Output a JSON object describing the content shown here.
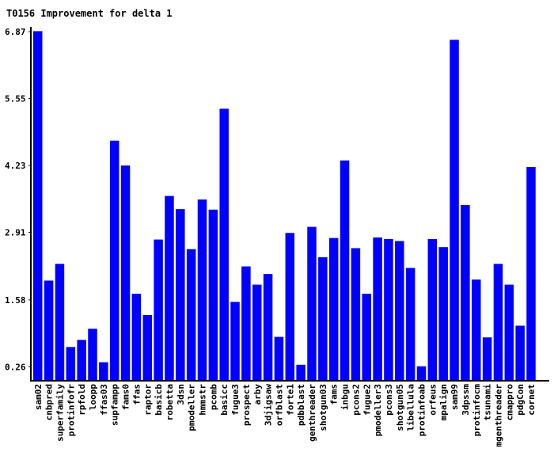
{
  "chart_data": {
    "type": "bar",
    "title": "T0156 Improvement for delta 1",
    "xlabel": "",
    "ylabel": "",
    "ylim": [
      0,
      6.98
    ],
    "yticks": [
      0.26,
      1.58,
      2.91,
      4.23,
      5.55,
      6.87
    ],
    "ytick_labels": [
      "0.26",
      "1.58",
      "2.91",
      "4.23",
      "5.55",
      "6.87"
    ],
    "grid": false,
    "bar_color": "#0000ff",
    "categories": [
      "sam02",
      "cnbpred",
      "superfamily",
      "protinfofr",
      "rpfold",
      "loopp",
      "ffas03",
      "supfampp",
      "fams0",
      "ffas",
      "raptor",
      "basicb",
      "robetta",
      "3dsn",
      "pmodeller",
      "hmmstr",
      "pcomb",
      "basicc",
      "fugue3",
      "prospect",
      "arby",
      "3djigsaw",
      "orfblast",
      "forte1",
      "pdbblast",
      "genthreader",
      "shotgun03",
      "fams",
      "inbgu",
      "pcons2",
      "fugue2",
      "pmodeller3",
      "pcons3",
      "shotgun05",
      "libellula",
      "protinfoab",
      "orfeus",
      "mpalign",
      "sam99",
      "3dpssm",
      "protinfocm",
      "tsunami",
      "mgenthreader",
      "cmappro",
      "pdgCon",
      "cornet"
    ],
    "values": [
      6.88,
      1.96,
      2.29,
      0.65,
      0.79,
      1.01,
      0.35,
      4.72,
      4.23,
      1.7,
      1.28,
      2.77,
      3.63,
      3.37,
      2.58,
      3.56,
      3.36,
      5.35,
      1.54,
      2.24,
      1.88,
      2.09,
      0.85,
      2.9,
      0.3,
      3.02,
      2.42,
      2.8,
      4.33,
      2.6,
      1.7,
      2.81,
      2.78,
      2.74,
      2.21,
      0.27,
      2.78,
      2.62,
      6.71,
      3.45,
      1.98,
      0.84,
      2.29,
      1.88,
      1.07,
      4.2
    ]
  }
}
